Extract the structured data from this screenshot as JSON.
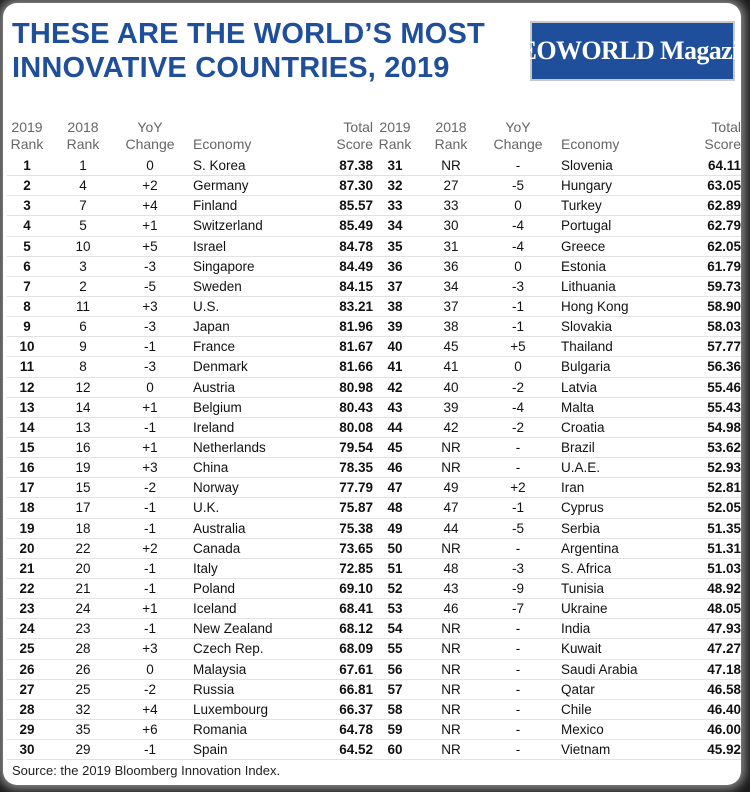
{
  "header": {
    "title_line1": "THESE ARE THE WORLD’S MOST",
    "title_line2": "INNOVATIVE COUNTRIES, 2019",
    "logo_text": "CEOWORLD Magazine"
  },
  "colors": {
    "title": "#1f4e9a",
    "positive": "#1a9a36",
    "negative": "#d63030"
  },
  "table": {
    "headers": {
      "rank2019_l1": "2019",
      "rank2019_l2": "Rank",
      "rank2018_l1": "2018",
      "rank2018_l2": "Rank",
      "yoy_l1": "YoY",
      "yoy_l2": "Change",
      "economy": "Economy",
      "score_l1": "Total",
      "score_l2": "Score"
    },
    "left_rows": [
      [
        "1",
        "1",
        "0",
        "S. Korea",
        "87.38"
      ],
      [
        "2",
        "4",
        "+2",
        "Germany",
        "87.30"
      ],
      [
        "3",
        "7",
        "+4",
        "Finland",
        "85.57"
      ],
      [
        "4",
        "5",
        "+1",
        "Switzerland",
        "85.49"
      ],
      [
        "5",
        "10",
        "+5",
        "Israel",
        "84.78"
      ],
      [
        "6",
        "3",
        "-3",
        "Singapore",
        "84.49"
      ],
      [
        "7",
        "2",
        "-5",
        "Sweden",
        "84.15"
      ],
      [
        "8",
        "11",
        "+3",
        "U.S.",
        "83.21"
      ],
      [
        "9",
        "6",
        "-3",
        "Japan",
        "81.96"
      ],
      [
        "10",
        "9",
        "-1",
        "France",
        "81.67"
      ],
      [
        "11",
        "8",
        "-3",
        "Denmark",
        "81.66"
      ],
      [
        "12",
        "12",
        "0",
        "Austria",
        "80.98"
      ],
      [
        "13",
        "14",
        "+1",
        "Belgium",
        "80.43"
      ],
      [
        "14",
        "13",
        "-1",
        "Ireland",
        "80.08"
      ],
      [
        "15",
        "16",
        "+1",
        "Netherlands",
        "79.54"
      ],
      [
        "16",
        "19",
        "+3",
        "China",
        "78.35"
      ],
      [
        "17",
        "15",
        "-2",
        "Norway",
        "77.79"
      ],
      [
        "18",
        "17",
        "-1",
        "U.K.",
        "75.87"
      ],
      [
        "19",
        "18",
        "-1",
        "Australia",
        "75.38"
      ],
      [
        "20",
        "22",
        "+2",
        "Canada",
        "73.65"
      ],
      [
        "21",
        "20",
        "-1",
        "Italy",
        "72.85"
      ],
      [
        "22",
        "21",
        "-1",
        "Poland",
        "69.10"
      ],
      [
        "23",
        "24",
        "+1",
        "Iceland",
        "68.41"
      ],
      [
        "24",
        "23",
        "-1",
        "New Zealand",
        "68.12"
      ],
      [
        "25",
        "28",
        "+3",
        "Czech Rep.",
        "68.09"
      ],
      [
        "26",
        "26",
        "0",
        "Malaysia",
        "67.61"
      ],
      [
        "27",
        "25",
        "-2",
        "Russia",
        "66.81"
      ],
      [
        "28",
        "32",
        "+4",
        "Luxembourg",
        "66.37"
      ],
      [
        "29",
        "35",
        "+6",
        "Romania",
        "64.78"
      ],
      [
        "30",
        "29",
        "-1",
        "Spain",
        "64.52"
      ]
    ],
    "right_rows": [
      [
        "31",
        "NR",
        "-",
        "Slovenia",
        "64.11"
      ],
      [
        "32",
        "27",
        "-5",
        "Hungary",
        "63.05"
      ],
      [
        "33",
        "33",
        "0",
        "Turkey",
        "62.89"
      ],
      [
        "34",
        "30",
        "-4",
        "Portugal",
        "62.79"
      ],
      [
        "35",
        "31",
        "-4",
        "Greece",
        "62.05"
      ],
      [
        "36",
        "36",
        "0",
        "Estonia",
        "61.79"
      ],
      [
        "37",
        "34",
        "-3",
        "Lithuania",
        "59.73"
      ],
      [
        "38",
        "37",
        "-1",
        "Hong Kong",
        "58.90"
      ],
      [
        "39",
        "38",
        "-1",
        "Slovakia",
        "58.03"
      ],
      [
        "40",
        "45",
        "+5",
        "Thailand",
        "57.77"
      ],
      [
        "41",
        "41",
        "0",
        "Bulgaria",
        "56.36"
      ],
      [
        "42",
        "40",
        "-2",
        "Latvia",
        "55.46"
      ],
      [
        "43",
        "39",
        "-4",
        "Malta",
        "55.43"
      ],
      [
        "44",
        "42",
        "-2",
        "Croatia",
        "54.98"
      ],
      [
        "45",
        "NR",
        "-",
        "Brazil",
        "53.62"
      ],
      [
        "46",
        "NR",
        "-",
        "U.A.E.",
        "52.93"
      ],
      [
        "47",
        "49",
        "+2",
        "Iran",
        "52.81"
      ],
      [
        "48",
        "47",
        "-1",
        "Cyprus",
        "52.05"
      ],
      [
        "49",
        "44",
        "-5",
        "Serbia",
        "51.35"
      ],
      [
        "50",
        "NR",
        "-",
        "Argentina",
        "51.31"
      ],
      [
        "51",
        "48",
        "-3",
        "S. Africa",
        "51.03"
      ],
      [
        "52",
        "43",
        "-9",
        "Tunisia",
        "48.92"
      ],
      [
        "53",
        "46",
        "-7",
        "Ukraine",
        "48.05"
      ],
      [
        "54",
        "NR",
        "-",
        "India",
        "47.93"
      ],
      [
        "55",
        "NR",
        "-",
        "Kuwait",
        "47.27"
      ],
      [
        "56",
        "NR",
        "-",
        "Saudi Arabia",
        "47.18"
      ],
      [
        "57",
        "NR",
        "-",
        "Qatar",
        "46.58"
      ],
      [
        "58",
        "NR",
        "-",
        "Chile",
        "46.40"
      ],
      [
        "59",
        "NR",
        "-",
        "Mexico",
        "46.00"
      ],
      [
        "60",
        "NR",
        "-",
        "Vietnam",
        "45.92"
      ]
    ]
  },
  "footer": {
    "source": "Source: the 2019 Bloomberg Innovation Index."
  }
}
